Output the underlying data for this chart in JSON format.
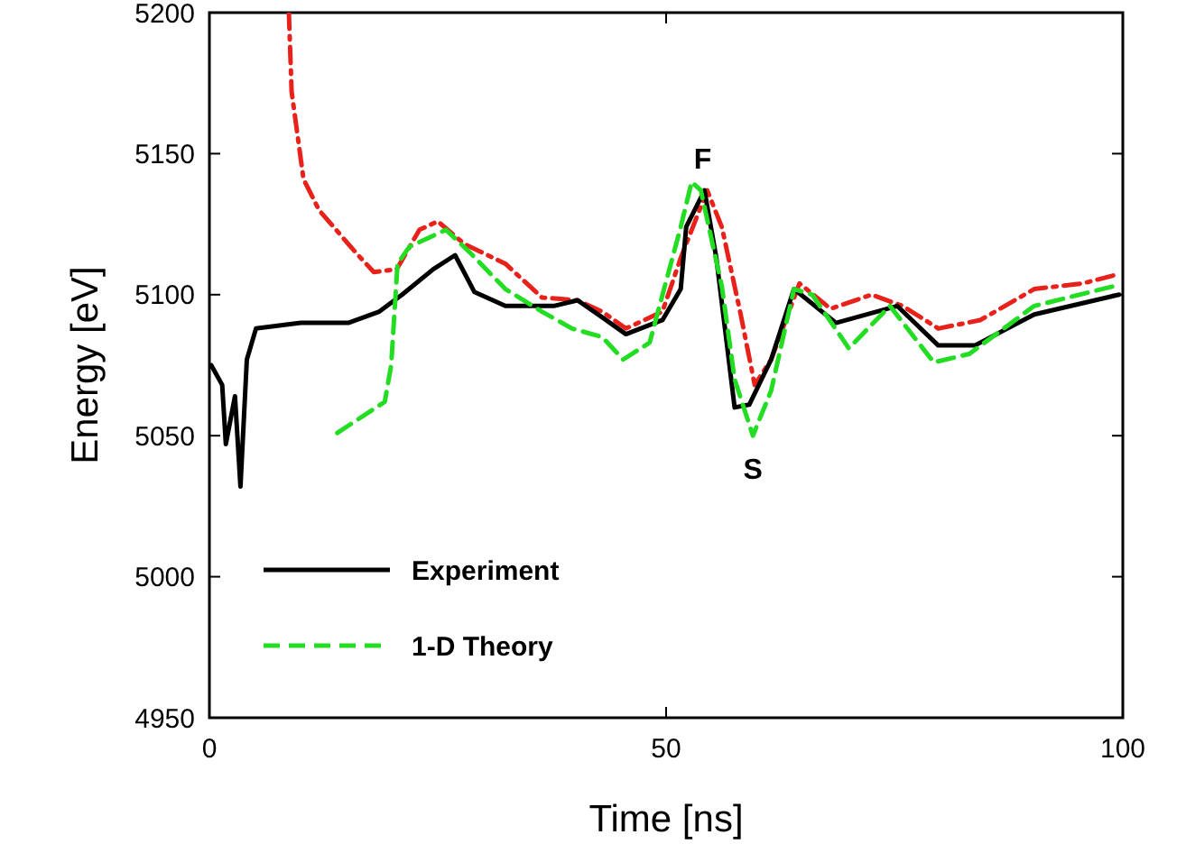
{
  "chart_data": {
    "type": "line",
    "xlabel": "Time [ns]",
    "ylabel": "Energy [eV]",
    "xlim": [
      0,
      100
    ],
    "xticks": [
      0,
      50,
      100
    ],
    "ylim": [
      4950,
      5200
    ],
    "yticks": [
      4950,
      5000,
      5050,
      5100,
      5150,
      5200
    ],
    "grid": false,
    "legend": "bottom left",
    "marker": "none",
    "series": [
      {
        "color": "#e8211b",
        "line_style": "dashdot",
        "x": [
          8.7,
          9.0,
          10.3,
          12,
          16,
          18,
          20.5,
          23,
          25,
          27.9,
          32.4,
          36.4,
          40.3,
          43,
          45.6,
          49.6,
          51.6,
          54.5,
          56.1,
          58.1,
          59.7,
          61.5,
          64.6,
          68,
          72.5,
          75.9,
          79.8,
          84.4,
          90.3,
          95.6,
          99.2
        ],
        "values": [
          5200,
          5172,
          5141,
          5130,
          5115,
          5108,
          5109,
          5123,
          5126,
          5118,
          5111,
          5099,
          5098,
          5094,
          5088,
          5094,
          5113,
          5137,
          5124,
          5094,
          5068,
          5077,
          5104,
          5095,
          5100,
          5096,
          5088,
          5091,
          5102,
          5104,
          5107
        ]
      },
      {
        "name": "Experiment",
        "color": "#000000",
        "line_style": "solid",
        "x": [
          0.2,
          1.4,
          1.8,
          2.8,
          3.4,
          4.1,
          5.1,
          10,
          15.2,
          18.6,
          21.1,
          24.5,
          26.9,
          29,
          32.4,
          37.7,
          40.3,
          43,
          45.6,
          49.6,
          51.6,
          52.2,
          54.2,
          55.5,
          57.5,
          59.1,
          61.5,
          64,
          68.6,
          75.3,
          79.8,
          83.8,
          90.3,
          99.6
        ],
        "values": [
          5075,
          5068,
          5047,
          5064,
          5032,
          5077,
          5088,
          5090,
          5090,
          5094,
          5100,
          5109,
          5114,
          5101,
          5096,
          5096,
          5098,
          5092,
          5086,
          5091,
          5102,
          5124,
          5137,
          5113,
          5060,
          5061,
          5077,
          5102,
          5090,
          5096,
          5082,
          5082,
          5093,
          5100
        ]
      },
      {
        "name": "1-D Theory",
        "color": "#22dd22",
        "line_style": "dashed",
        "x": [
          14,
          19.2,
          19.9,
          20.6,
          21.9,
          25.9,
          28.5,
          32.4,
          36.4,
          39.7,
          43,
          45.3,
          48.2,
          51.6,
          52.8,
          53.8,
          56.1,
          57.5,
          59.5,
          61.5,
          64,
          66,
          70,
          74.5,
          79.3,
          83.2,
          90.3,
          99
        ],
        "values": [
          5051,
          5062,
          5075,
          5111,
          5117,
          5123,
          5115,
          5102,
          5094,
          5088,
          5085,
          5077,
          5083,
          5124,
          5140,
          5137,
          5103,
          5070,
          5050,
          5066,
          5102,
          5100,
          5081,
          5096,
          5076,
          5079,
          5096,
          5103
        ]
      }
    ],
    "annotations": [
      {
        "text": "F",
        "x": 54,
        "y": 5137
      },
      {
        "text": "S",
        "x": 59.5,
        "y": 5050
      }
    ]
  }
}
